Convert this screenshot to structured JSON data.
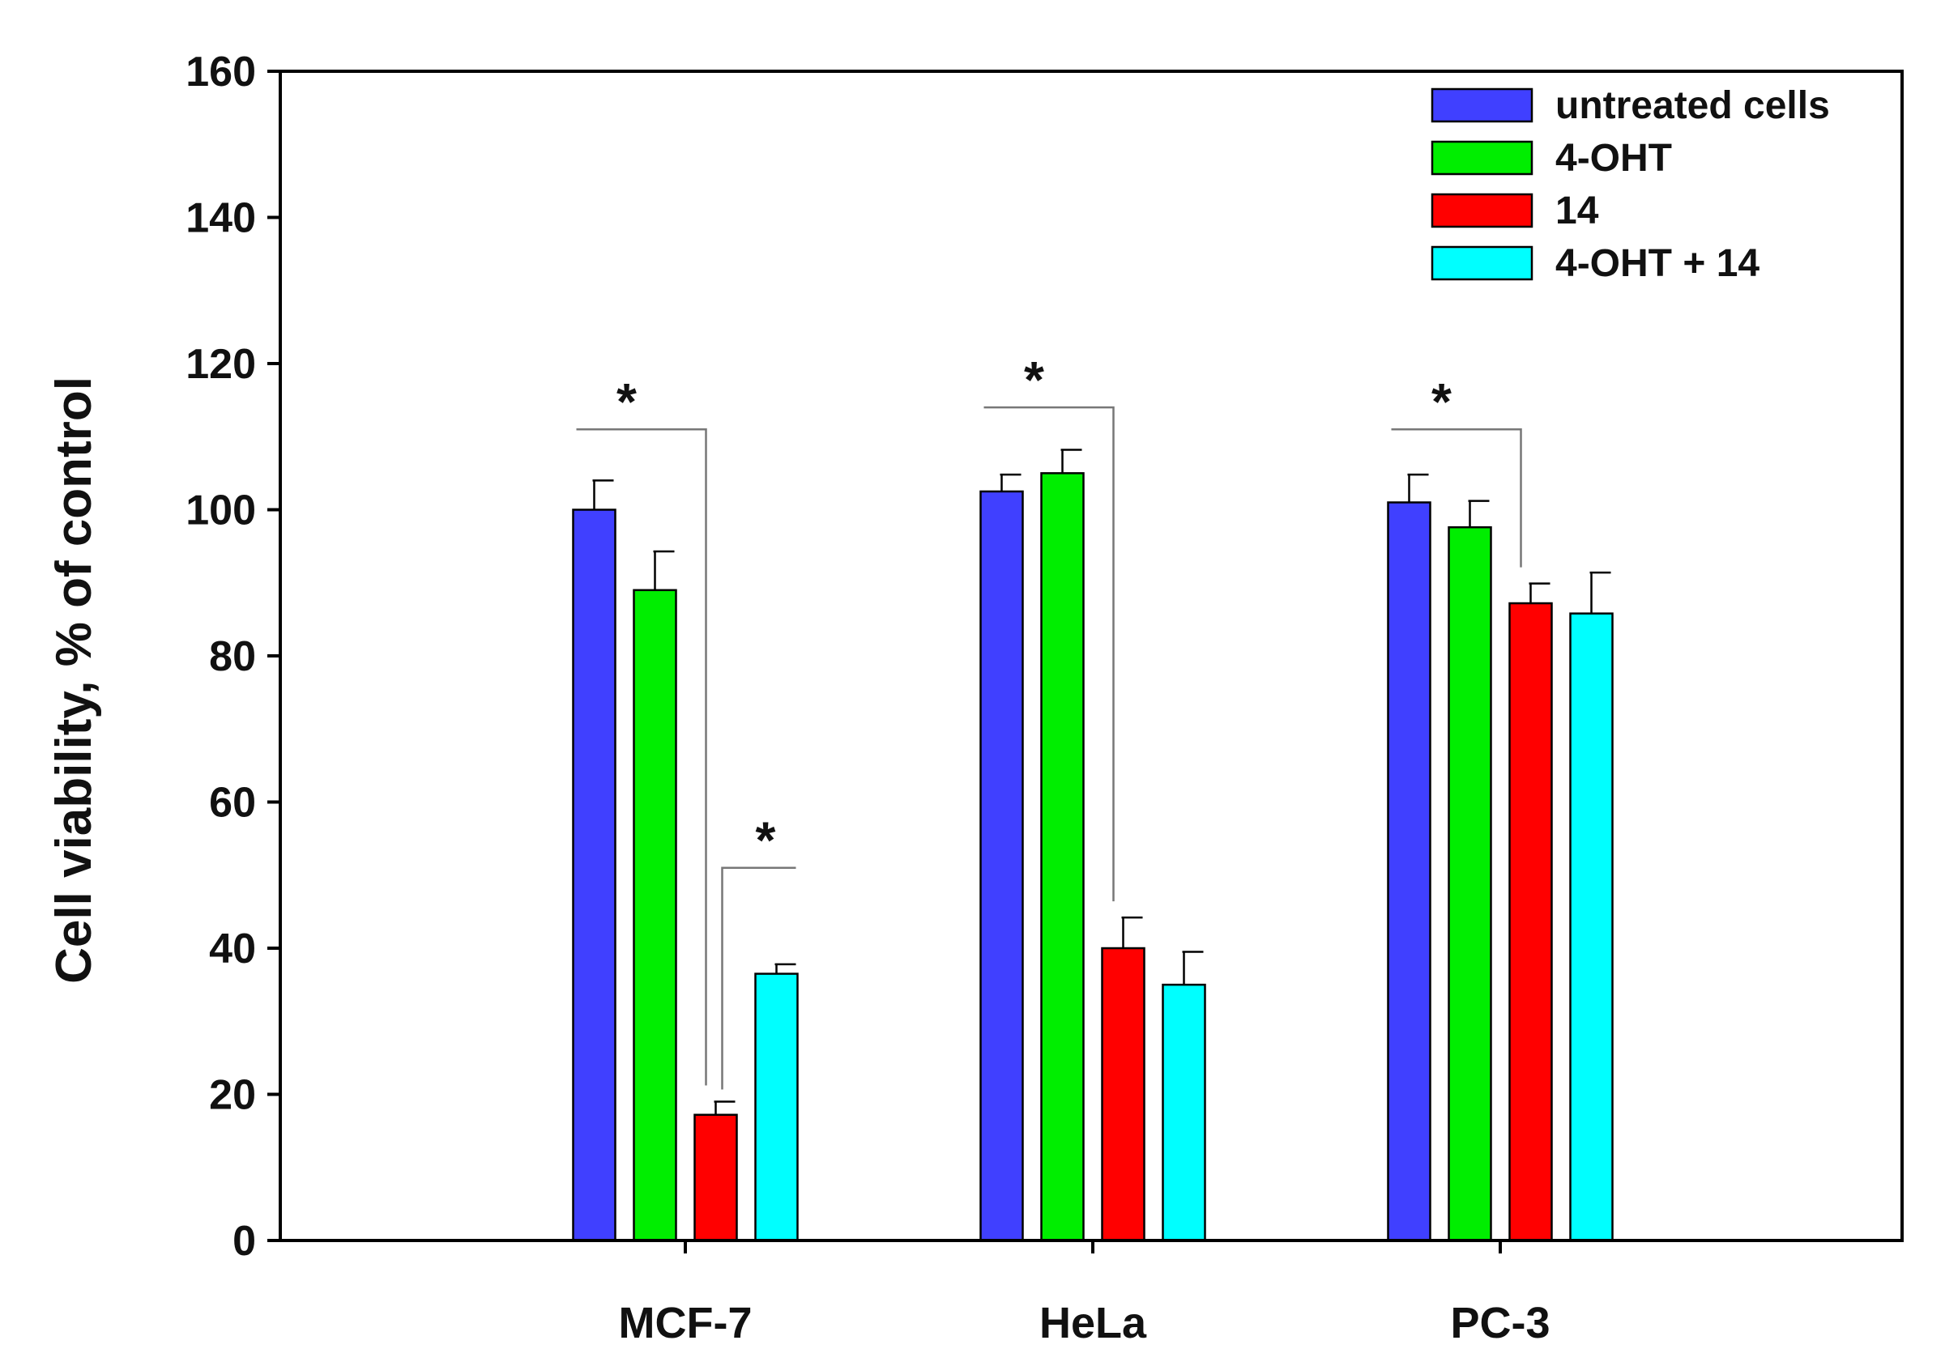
{
  "chart_data": {
    "type": "bar",
    "title": "",
    "xlabel": "",
    "ylabel": "Cell viability, % of control",
    "ylim": [
      0,
      160
    ],
    "yticks": [
      0,
      20,
      40,
      60,
      80,
      100,
      120,
      140,
      160
    ],
    "grid": false,
    "legend_position": "top-right",
    "categories": [
      "MCF-7",
      "HeLa",
      "PC-3"
    ],
    "series": [
      {
        "name": "untreated cells",
        "color": "#4040ff",
        "values": [
          100,
          102.5,
          101
        ],
        "errors": [
          4,
          2.3,
          3.8
        ]
      },
      {
        "name": "4-OHT",
        "color": "#00ee00",
        "values": [
          89,
          105,
          97.6
        ],
        "errors": [
          5.3,
          3.2,
          3.6
        ]
      },
      {
        "name": "14",
        "color": "#ff0000",
        "values": [
          17.2,
          40,
          87.2
        ],
        "errors": [
          1.8,
          4.2,
          2.7
        ]
      },
      {
        "name": "4-OHT + 14",
        "color": "#00ffff",
        "values": [
          36.5,
          35,
          85.8
        ],
        "errors": [
          1.3,
          4.5,
          5.6
        ]
      }
    ],
    "significance": [
      {
        "category": 0,
        "from_series": 0,
        "to_series": 2,
        "bracket_y": 111,
        "label": "*"
      },
      {
        "category": 0,
        "from_series": 2,
        "to_series": 3,
        "bracket_y": 51,
        "label": "*"
      },
      {
        "category": 1,
        "from_series": 0,
        "to_series": 2,
        "bracket_y": 114,
        "label": "*"
      },
      {
        "category": 2,
        "from_series": 0,
        "to_series": 2,
        "bracket_y": 111,
        "label": "*"
      }
    ]
  }
}
